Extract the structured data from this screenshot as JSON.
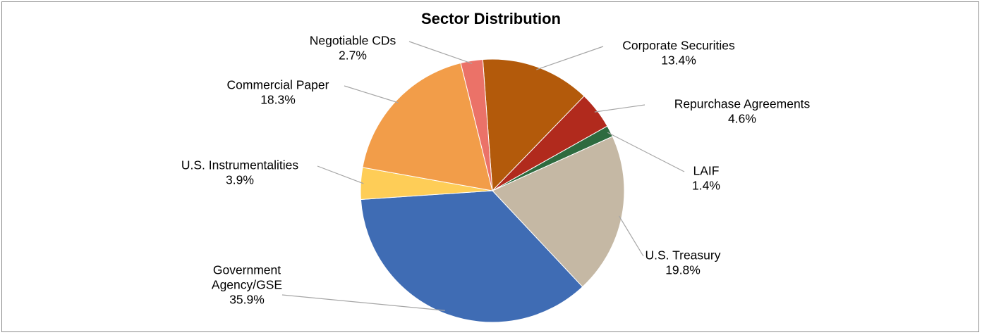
{
  "chart_data": {
    "type": "pie",
    "title": "Sector Distribution",
    "slices": [
      {
        "name": "Corporate Securities",
        "label_lines": [
          "Corporate Securities"
        ],
        "value": 13.4,
        "pct_label": "13.4%",
        "color": "#b35a0b"
      },
      {
        "name": "Repurchase Agreements",
        "label_lines": [
          "Repurchase Agreements"
        ],
        "value": 4.6,
        "pct_label": "4.6%",
        "color": "#b12a1d"
      },
      {
        "name": "LAIF",
        "label_lines": [
          "LAIF"
        ],
        "value": 1.4,
        "pct_label": "1.4%",
        "color": "#2e6b3f"
      },
      {
        "name": "U.S. Treasury",
        "label_lines": [
          "U.S. Treasury"
        ],
        "value": 19.8,
        "pct_label": "19.8%",
        "color": "#c5b8a4"
      },
      {
        "name": "Government Agency/GSE",
        "label_lines": [
          "Government",
          "Agency/GSE"
        ],
        "value": 35.9,
        "pct_label": "35.9%",
        "color": "#3f6cb4"
      },
      {
        "name": "U.S. Instrumentalities",
        "label_lines": [
          "U.S. Instrumentalities"
        ],
        "value": 3.9,
        "pct_label": "3.9%",
        "color": "#fecd57"
      },
      {
        "name": "Commercial Paper",
        "label_lines": [
          "Commercial Paper"
        ],
        "value": 18.3,
        "pct_label": "18.3%",
        "color": "#f29d49"
      },
      {
        "name": "Negotiable CDs",
        "label_lines": [
          "Negotiable CDs"
        ],
        "value": 2.7,
        "pct_label": "2.7%",
        "color": "#eb7268"
      }
    ]
  }
}
